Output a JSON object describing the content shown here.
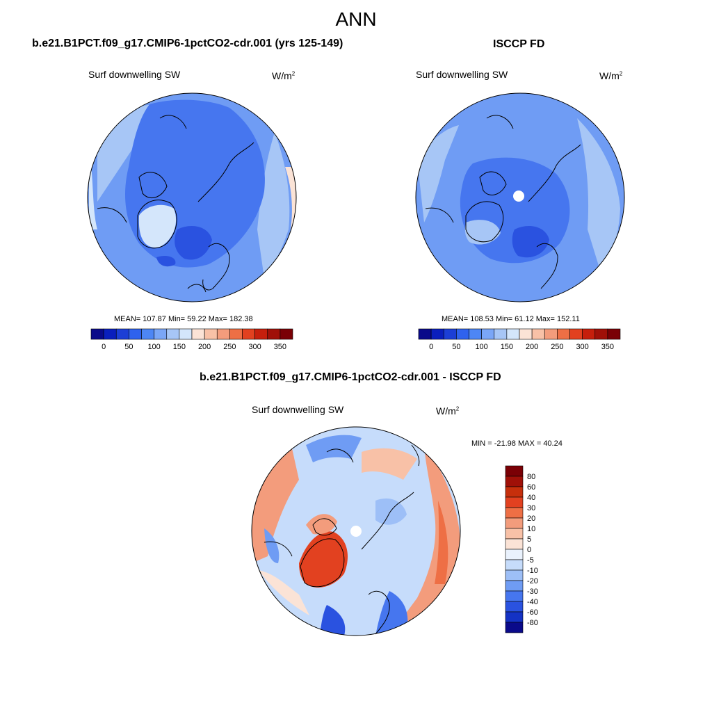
{
  "figure": {
    "title": "ANN"
  },
  "panels": [
    {
      "title": "b.e21.B1PCT.f09_g17.CMIP6-1pctCO2-cdr.001 (yrs 125-149)",
      "subtitle": "Surf downwelling SW",
      "units": "W/m",
      "units_sup": "2",
      "stats": "MEAN= 107.87  Min=  59.22  Max= 182.38"
    },
    {
      "title": "ISCCP FD",
      "subtitle": "Surf downwelling SW",
      "units": "W/m",
      "units_sup": "2",
      "stats": "MEAN= 108.53  Min=  61.12  Max= 152.11"
    },
    {
      "title": "b.e21.B1PCT.f09_g17.CMIP6-1pctCO2-cdr.001 - ISCCP FD",
      "subtitle": "Surf downwelling SW",
      "units": "W/m",
      "units_sup": "2",
      "stats": "MIN = -21.98 MAX =  40.24"
    }
  ],
  "chart_data": [
    {
      "type": "heatmap",
      "projection": "north-polar-stereographic",
      "title": "b.e21.B1PCT.f09_g17.CMIP6-1pctCO2-cdr.001 (yrs 125-149)",
      "variable": "Surf downwelling SW",
      "units": "W/m2",
      "mean": 107.87,
      "min": 59.22,
      "max": 182.38,
      "colorbar_levels": [
        0,
        25,
        50,
        75,
        100,
        125,
        150,
        175,
        200,
        225,
        250,
        275,
        300,
        325,
        350
      ],
      "colorbar_tick_labels": [
        "0",
        "50",
        "100",
        "150",
        "200",
        "250",
        "300",
        "350"
      ],
      "colorbar_colors": [
        "#0a0a8a",
        "#0a1fbd",
        "#1c3fd6",
        "#2f62ee",
        "#4d86f5",
        "#7aa6f7",
        "#a7c6f6",
        "#d4e6fb",
        "#fbe3d6",
        "#f8c1a7",
        "#f39c7c",
        "#ee6f45",
        "#e24120",
        "#c61f0c",
        "#a01008",
        "#7a0005"
      ]
    },
    {
      "type": "heatmap",
      "projection": "north-polar-stereographic",
      "title": "ISCCP FD",
      "variable": "Surf downwelling SW",
      "units": "W/m2",
      "mean": 108.53,
      "min": 61.12,
      "max": 152.11,
      "colorbar_levels": [
        0,
        25,
        50,
        75,
        100,
        125,
        150,
        175,
        200,
        225,
        250,
        275,
        300,
        325,
        350
      ],
      "colorbar_tick_labels": [
        "0",
        "50",
        "100",
        "150",
        "200",
        "250",
        "300",
        "350"
      ],
      "colorbar_colors": [
        "#0a0a8a",
        "#0a1fbd",
        "#1c3fd6",
        "#2f62ee",
        "#4d86f5",
        "#7aa6f7",
        "#a7c6f6",
        "#d4e6fb",
        "#fbe3d6",
        "#f8c1a7",
        "#f39c7c",
        "#ee6f45",
        "#e24120",
        "#c61f0c",
        "#a01008",
        "#7a0005"
      ]
    },
    {
      "type": "heatmap",
      "projection": "north-polar-stereographic",
      "title": "b.e21.B1PCT.f09_g17.CMIP6-1pctCO2-cdr.001 - ISCCP FD",
      "variable": "Surf downwelling SW",
      "units": "W/m2",
      "min": -21.98,
      "max": 40.24,
      "colorbar_levels": [
        80,
        60,
        40,
        30,
        20,
        10,
        5,
        0,
        -5,
        -10,
        -20,
        -30,
        -40,
        -60,
        -80
      ],
      "colorbar_tick_labels": [
        "80",
        "60",
        "40",
        "30",
        "20",
        "10",
        "5",
        "0",
        "-5",
        "-10",
        "-20",
        "-30",
        "-40",
        "-60",
        "-80"
      ],
      "colorbar_colors": [
        "#7a0005",
        "#a01008",
        "#c62f0c",
        "#e24120",
        "#ee6f45",
        "#f39c7c",
        "#f8c1a7",
        "#fbe3d6",
        "#eaf2fd",
        "#c6dcfb",
        "#9dbff7",
        "#6f9cf4",
        "#4676ef",
        "#2a52e0",
        "#1432c4",
        "#0a0a8a"
      ]
    }
  ]
}
